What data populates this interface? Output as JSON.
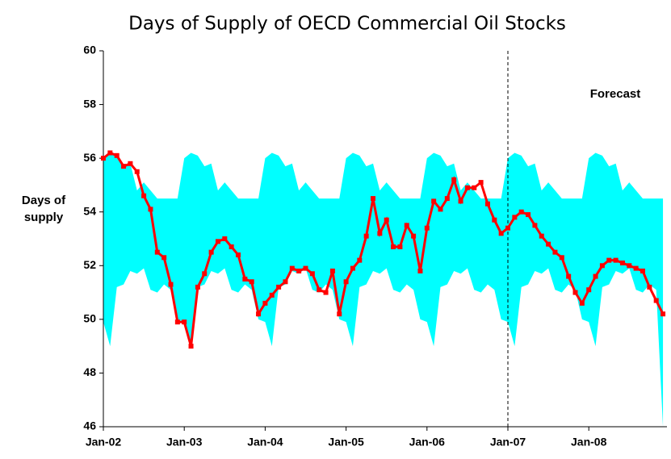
{
  "chart_data": {
    "type": "line",
    "title": "Days of Supply of OECD Commercial Oil Stocks",
    "ylabel": "Days of supply",
    "categories": [
      "Jan-02",
      null,
      null,
      null,
      null,
      null,
      null,
      null,
      null,
      null,
      null,
      null,
      "Jan-03",
      null,
      null,
      null,
      null,
      null,
      null,
      null,
      null,
      null,
      null,
      null,
      "Jan-04",
      null,
      null,
      null,
      null,
      null,
      null,
      null,
      null,
      null,
      null,
      null,
      "Jan-05",
      null,
      null,
      null,
      null,
      null,
      null,
      null,
      null,
      null,
      null,
      null,
      "Jan-06",
      null,
      null,
      null,
      null,
      null,
      null,
      null,
      null,
      null,
      null,
      null,
      "Jan-07",
      null,
      null,
      null,
      null,
      null,
      null,
      null,
      null,
      null,
      null,
      null,
      "Jan-08",
      null,
      null,
      null,
      null,
      null,
      null,
      null,
      null,
      null,
      null,
      null
    ],
    "series": [
      {
        "color": "#ff0000",
        "values": [
          56.0,
          56.2,
          56.1,
          55.7,
          55.8,
          55.5,
          54.6,
          54.1,
          52.5,
          52.3,
          51.3,
          49.9,
          49.9,
          49.0,
          51.2,
          51.7,
          52.5,
          52.9,
          53.0,
          52.7,
          52.4,
          51.5,
          51.4,
          50.2,
          50.6,
          50.9,
          51.2,
          51.4,
          51.9,
          51.8,
          51.9,
          51.7,
          51.1,
          51.0,
          51.8,
          50.2,
          51.4,
          51.9,
          52.2,
          53.1,
          54.5,
          53.2,
          53.7,
          52.7,
          52.7,
          53.5,
          53.1,
          51.8,
          53.4,
          54.4,
          54.1,
          54.5,
          55.2,
          54.4,
          54.9,
          54.9,
          55.1,
          54.3,
          53.7,
          53.2,
          53.4,
          53.8,
          54.0,
          53.9,
          53.5,
          53.1,
          52.8,
          52.5,
          52.3,
          51.6,
          51.0,
          50.6,
          51.1,
          51.6,
          52.0,
          52.2,
          52.2,
          52.1,
          52.0,
          51.9,
          51.8,
          51.2,
          50.7,
          50.2
        ]
      }
    ],
    "band": {
      "color": "#00ffff",
      "upper": [
        56.0,
        56.2,
        56.1,
        55.7,
        55.8,
        54.8,
        55.1,
        54.8,
        54.5,
        54.5,
        54.5,
        54.5,
        56.0,
        56.2,
        56.1,
        55.7,
        55.8,
        54.8,
        55.1,
        54.8,
        54.5,
        54.5,
        54.5,
        54.5,
        56.0,
        56.2,
        56.1,
        55.7,
        55.8,
        54.8,
        55.1,
        54.8,
        54.5,
        54.5,
        54.5,
        54.5,
        56.0,
        56.2,
        56.1,
        55.7,
        55.8,
        54.8,
        55.1,
        54.8,
        54.5,
        54.5,
        54.5,
        54.5,
        56.0,
        56.2,
        56.1,
        55.7,
        55.8,
        54.8,
        55.1,
        54.8,
        54.5,
        54.5,
        54.5,
        54.5,
        56.0,
        56.2,
        56.1,
        55.7,
        55.8,
        54.8,
        55.1,
        54.8,
        54.5,
        54.5,
        54.5,
        54.5,
        56.0,
        56.2,
        56.1,
        55.7,
        55.8,
        54.8,
        55.1,
        54.8,
        54.5,
        54.5,
        54.5,
        54.5
      ],
      "lower": [
        49.9,
        49.0,
        51.2,
        51.3,
        51.8,
        51.7,
        51.9,
        51.1,
        51.0,
        51.3,
        51.1,
        50.0,
        49.9,
        49.0,
        51.2,
        51.3,
        51.8,
        51.7,
        51.9,
        51.1,
        51.0,
        51.3,
        51.1,
        50.0,
        49.9,
        49.0,
        51.2,
        51.3,
        51.8,
        51.7,
        51.9,
        51.1,
        51.0,
        51.3,
        51.1,
        50.0,
        49.9,
        49.0,
        51.2,
        51.3,
        51.8,
        51.7,
        51.9,
        51.1,
        51.0,
        51.3,
        51.1,
        50.0,
        49.9,
        49.0,
        51.2,
        51.3,
        51.8,
        51.7,
        51.9,
        51.1,
        51.0,
        51.3,
        51.1,
        50.0,
        49.9,
        49.0,
        51.2,
        51.3,
        51.8,
        51.7,
        51.9,
        51.1,
        51.0,
        51.3,
        51.1,
        50.0,
        49.9,
        49.0,
        51.2,
        51.3,
        51.8,
        51.7,
        51.9,
        51.1,
        51.0,
        51.3,
        51.1,
        46
      ]
    },
    "annotations": [
      {
        "text": "Forecast",
        "at": "Jan-07"
      }
    ],
    "ylim": [
      46,
      60
    ],
    "yticks": [
      46,
      48,
      50,
      52,
      54,
      56,
      58,
      60
    ],
    "grid": false
  }
}
